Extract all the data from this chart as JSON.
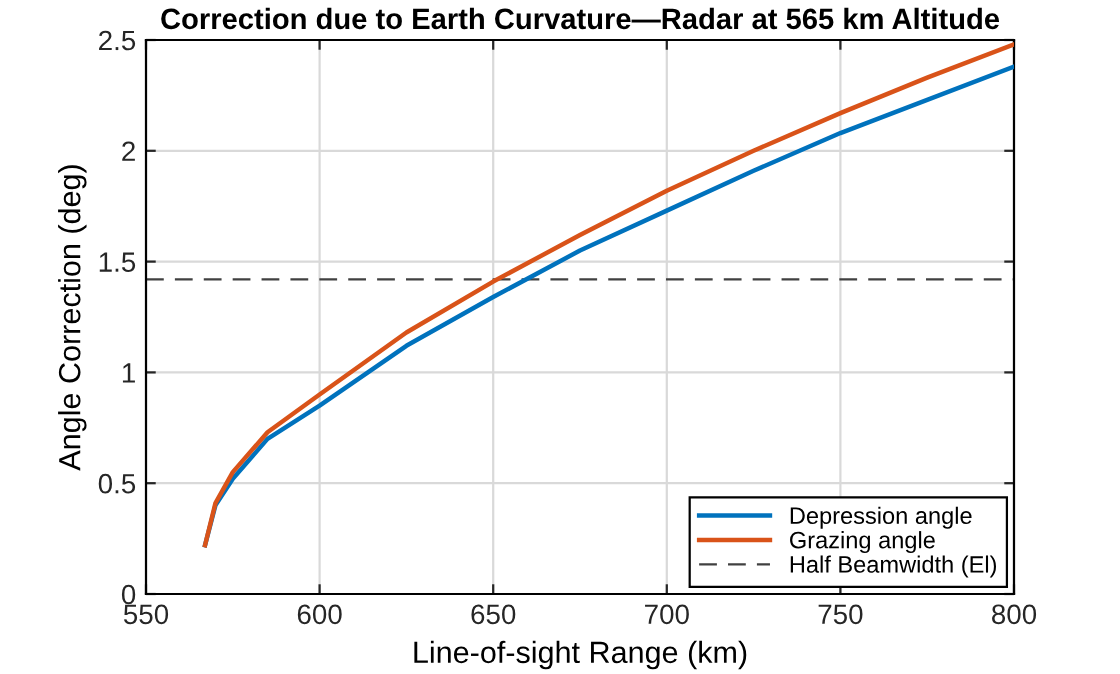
{
  "chart_data": {
    "type": "line",
    "title": "Correction due to Earth Curvature—Radar at 565 km Altitude",
    "xlabel": "Line-of-sight Range (km)",
    "ylabel": "Angle Correction (deg)",
    "x": [
      567,
      570,
      575,
      585,
      600,
      625,
      650,
      675,
      700,
      725,
      750,
      775,
      800
    ],
    "series": [
      {
        "name": "Depression angle",
        "color": "#0072bd",
        "values": [
          0.22,
          0.4,
          0.52,
          0.7,
          0.85,
          1.12,
          1.34,
          1.55,
          1.73,
          1.91,
          2.08,
          2.23,
          2.38
        ]
      },
      {
        "name": "Grazing angle",
        "color": "#d95319",
        "values": [
          0.22,
          0.41,
          0.55,
          0.73,
          0.9,
          1.18,
          1.41,
          1.62,
          1.82,
          2.0,
          2.17,
          2.33,
          2.48
        ]
      }
    ],
    "ref_lines": [
      {
        "axis": "y",
        "value": 1.42,
        "label": "Half Beamwidth (El)",
        "color": "#404040",
        "line_style": "dashed"
      }
    ],
    "xlim": [
      550,
      800
    ],
    "xticks": [
      550,
      600,
      650,
      700,
      750,
      800
    ],
    "ylim": [
      0,
      2.5
    ],
    "yticks": [
      0,
      0.5,
      1,
      1.5,
      2,
      2.5
    ],
    "grid": true,
    "legend": "bottom right",
    "marker": "none",
    "line_style": "solid"
  }
}
